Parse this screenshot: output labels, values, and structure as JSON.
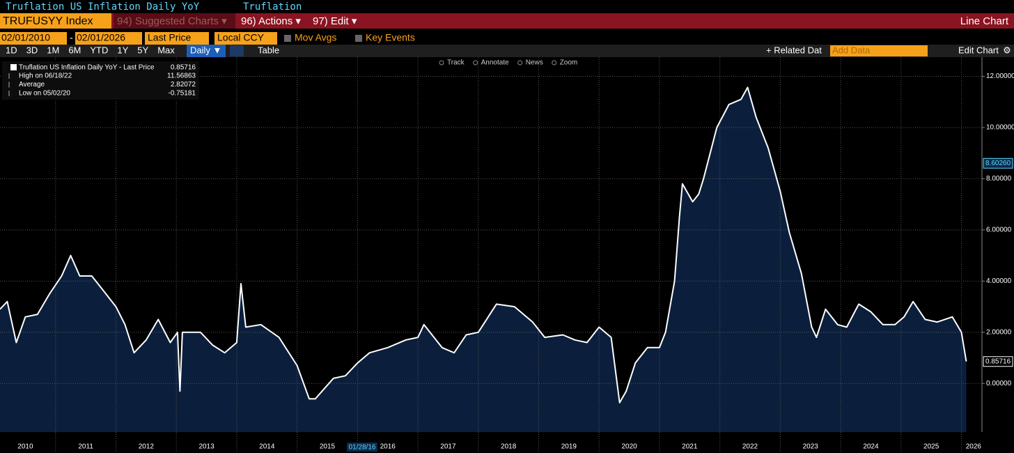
{
  "header": {
    "title": "Truflation US Inflation Daily YoY",
    "source": "Truflation",
    "ticker": "TRUFUSYY Index",
    "menus": [
      "94) Suggested Charts ▾",
      "96) Actions ▾",
      "97) Edit ▾"
    ],
    "chart_kind": "Line Chart"
  },
  "toolbar": {
    "start_date": "02/01/2010",
    "date_sep": "-",
    "end_date": "02/01/2026",
    "field": "Last Price",
    "currency": "Local CCY",
    "options": [
      "Mov Avgs",
      "Key Events"
    ],
    "ranges": [
      "1D",
      "3D",
      "1M",
      "6M",
      "YTD",
      "1Y",
      "5Y",
      "Max"
    ],
    "frequency": "Daily ▼",
    "table": "Table",
    "related": "+ Related Dat",
    "add_data": "Add Data",
    "edit_chart": "Edit Chart",
    "tools": [
      "Track",
      "Annotate",
      "News",
      "Zoom"
    ]
  },
  "chart_data": {
    "type": "line",
    "series": [
      {
        "name": "Truflation US Inflation Daily YoY - Last Price",
        "color": "#ffffff",
        "fill": "#0b1f3d",
        "values": [
          2.9,
          3.2,
          1.6,
          2.6,
          2.7,
          3.5,
          4.2,
          5.0,
          4.2,
          4.2,
          3.6,
          3.0,
          2.3,
          1.2,
          1.7,
          2.5,
          1.6,
          2.0,
          -0.3,
          2.0,
          2.0,
          1.5,
          1.2,
          1.6,
          3.9,
          2.2,
          2.3,
          1.8,
          0.7,
          -0.6,
          -0.6,
          0.2,
          0.3,
          0.8,
          1.2,
          1.4,
          1.7,
          1.8,
          2.3,
          1.4,
          1.2,
          1.9,
          2.0,
          3.1,
          3.0,
          2.4,
          1.8,
          1.9,
          1.7,
          1.6,
          2.2,
          1.8,
          -0.75181,
          -0.3,
          0.8,
          1.4,
          1.4,
          2.0,
          4.0,
          6.5,
          7.8,
          7.1,
          7.4,
          8.0,
          10.0,
          10.9,
          11.1,
          11.56863,
          10.4,
          9.2,
          7.5,
          5.9,
          4.3,
          2.2,
          1.8,
          2.9,
          2.3,
          2.2,
          3.1,
          2.8,
          2.3,
          2.3,
          2.6,
          3.2,
          2.5,
          2.4,
          2.6,
          2.0,
          0.85716
        ]
      }
    ],
    "x": [
      2010.08,
      2010.2,
      2010.35,
      2010.5,
      2010.7,
      2010.9,
      2011.1,
      2011.25,
      2011.4,
      2011.6,
      2011.8,
      2012.0,
      2012.15,
      2012.3,
      2012.5,
      2012.7,
      2012.9,
      2013.02,
      2013.06,
      2013.1,
      2013.4,
      2013.6,
      2013.8,
      2014.0,
      2014.07,
      2014.15,
      2014.4,
      2014.7,
      2015.0,
      2015.2,
      2015.3,
      2015.6,
      2015.8,
      2016.0,
      2016.2,
      2016.5,
      2016.8,
      2017.0,
      2017.1,
      2017.4,
      2017.6,
      2017.8,
      2018.0,
      2018.3,
      2018.6,
      2018.9,
      2019.1,
      2019.4,
      2019.6,
      2019.8,
      2020.0,
      2020.2,
      2020.34,
      2020.45,
      2020.6,
      2020.8,
      2021.0,
      2021.1,
      2021.25,
      2021.33,
      2021.38,
      2021.55,
      2021.65,
      2021.73,
      2021.95,
      2022.15,
      2022.35,
      2022.46,
      2022.6,
      2022.8,
      2023.0,
      2023.15,
      2023.35,
      2023.52,
      2023.6,
      2023.75,
      2023.95,
      2024.1,
      2024.3,
      2024.5,
      2024.7,
      2024.9,
      2025.05,
      2025.2,
      2025.4,
      2025.6,
      2025.85,
      2026.0,
      2026.08
    ],
    "xlim": [
      2010.08,
      2026.34
    ],
    "xticks": [
      {
        "value": 2010.5,
        "label": "2010"
      },
      {
        "value": 2011.5,
        "label": "2011"
      },
      {
        "value": 2012.5,
        "label": "2012"
      },
      {
        "value": 2013.5,
        "label": "2013"
      },
      {
        "value": 2014.5,
        "label": "2014"
      },
      {
        "value": 2015.5,
        "label": "2015"
      },
      {
        "value": 2016.5,
        "label": "2016"
      },
      {
        "value": 2017.5,
        "label": "2017"
      },
      {
        "value": 2018.5,
        "label": "2018"
      },
      {
        "value": 2019.5,
        "label": "2019"
      },
      {
        "value": 2020.5,
        "label": "2020"
      },
      {
        "value": 2021.5,
        "label": "2021"
      },
      {
        "value": 2022.5,
        "label": "2022"
      },
      {
        "value": 2023.5,
        "label": "2023"
      },
      {
        "value": 2024.5,
        "label": "2024"
      },
      {
        "value": 2025.5,
        "label": "2025"
      },
      {
        "value": 2026.2,
        "label": "2026"
      }
    ],
    "ylim": [
      -1.9,
      12.75
    ],
    "yticks": [
      {
        "value": 0,
        "label": "0.00000"
      },
      {
        "value": 2,
        "label": "2.00000"
      },
      {
        "value": 4,
        "label": "4.00000"
      },
      {
        "value": 6,
        "label": "6.00000"
      },
      {
        "value": 8,
        "label": "8.00000"
      },
      {
        "value": 10,
        "label": "10.00000"
      },
      {
        "value": 12,
        "label": "12.00000"
      }
    ],
    "grid": true,
    "axis_markers": [
      {
        "value": 8.6026,
        "label": "8.60260",
        "color": "#5fd7ff"
      },
      {
        "value": 0.85716,
        "label": "0.85716",
        "color": "#ffffff"
      }
    ],
    "date_marker": "01/28/16",
    "stats": [
      {
        "label": "High on 06/18/22",
        "value": "11.56863"
      },
      {
        "label": "Average",
        "value": "2.82072"
      },
      {
        "label": "Low on 05/02/20",
        "value": "-0.75181"
      }
    ],
    "last_value": "0.85716"
  }
}
